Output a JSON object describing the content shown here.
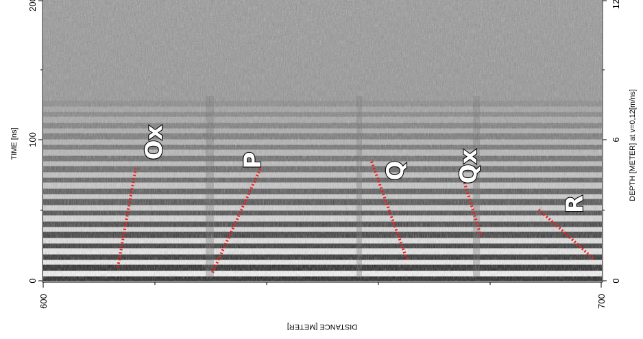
{
  "axes": {
    "left": {
      "title": "TIME [ns]",
      "ticks": [
        "0",
        "100",
        "200"
      ]
    },
    "right": {
      "title": "DEPTH [METER] at v=0,12[m/ns]",
      "ticks": [
        "0",
        "6",
        "12"
      ]
    },
    "bottom": {
      "title": "DISTANCE [METER]",
      "ticks": [
        "600",
        "700"
      ]
    }
  },
  "markers": [
    {
      "label": "Ox"
    },
    {
      "label": "P"
    },
    {
      "label": "Q"
    },
    {
      "label": "Qx"
    },
    {
      "label": "R"
    }
  ],
  "colors": {
    "marker_line": "#e8201e",
    "axis": "#000000",
    "background": "#ffffff"
  }
}
